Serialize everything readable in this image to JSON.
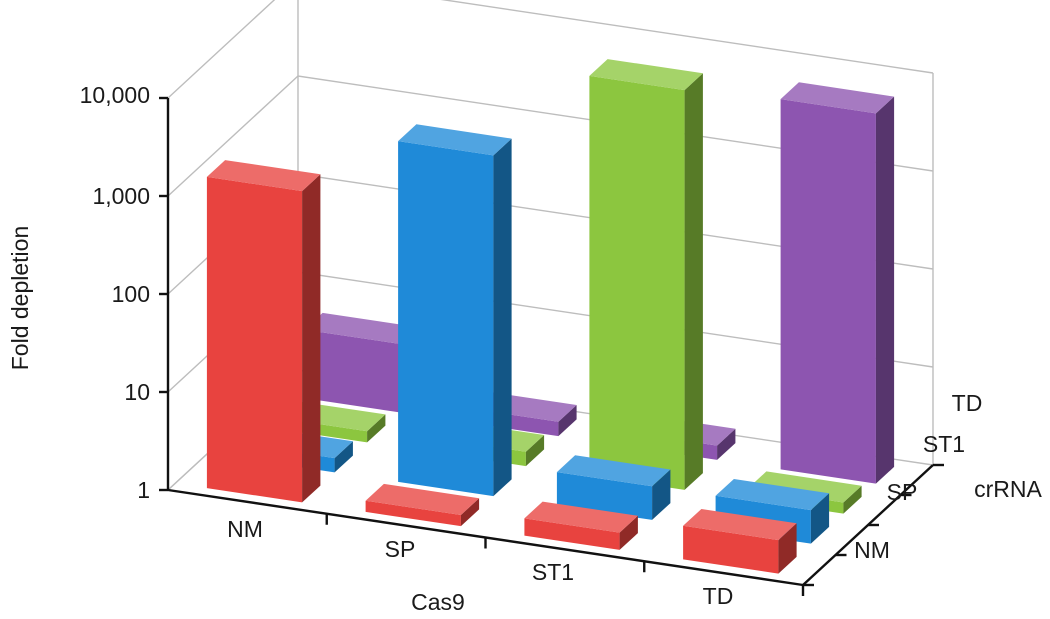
{
  "chart_data": {
    "type": "bar3d",
    "ylabel": "Fold depletion",
    "xlabel": "Cas9",
    "zlabel": "crRNA",
    "y_scale": "log",
    "ylim": [
      1,
      10000
    ],
    "y_ticks": [
      "1",
      "10",
      "100",
      "1,000",
      "10,000"
    ],
    "grid": true,
    "x_categories": [
      "NM",
      "SP",
      "ST1",
      "TD"
    ],
    "z_categories": [
      "NM",
      "SP",
      "ST1",
      "TD"
    ],
    "series": [
      {
        "name": "NM",
        "color": "#e8433f",
        "values": [
          1500,
          1.3,
          1.5,
          2.2
        ]
      },
      {
        "name": "SP",
        "color": "#1f8ad8",
        "values": [
          1.4,
          3000,
          2.2,
          2.2
        ]
      },
      {
        "name": "ST1",
        "color": "#8cc63f",
        "values": [
          1.3,
          1.4,
          12000,
          1.3
        ]
      },
      {
        "name": "TD",
        "color": "#8d55b0",
        "values": [
          5,
          1.4,
          1.4,
          6000
        ]
      }
    ]
  }
}
